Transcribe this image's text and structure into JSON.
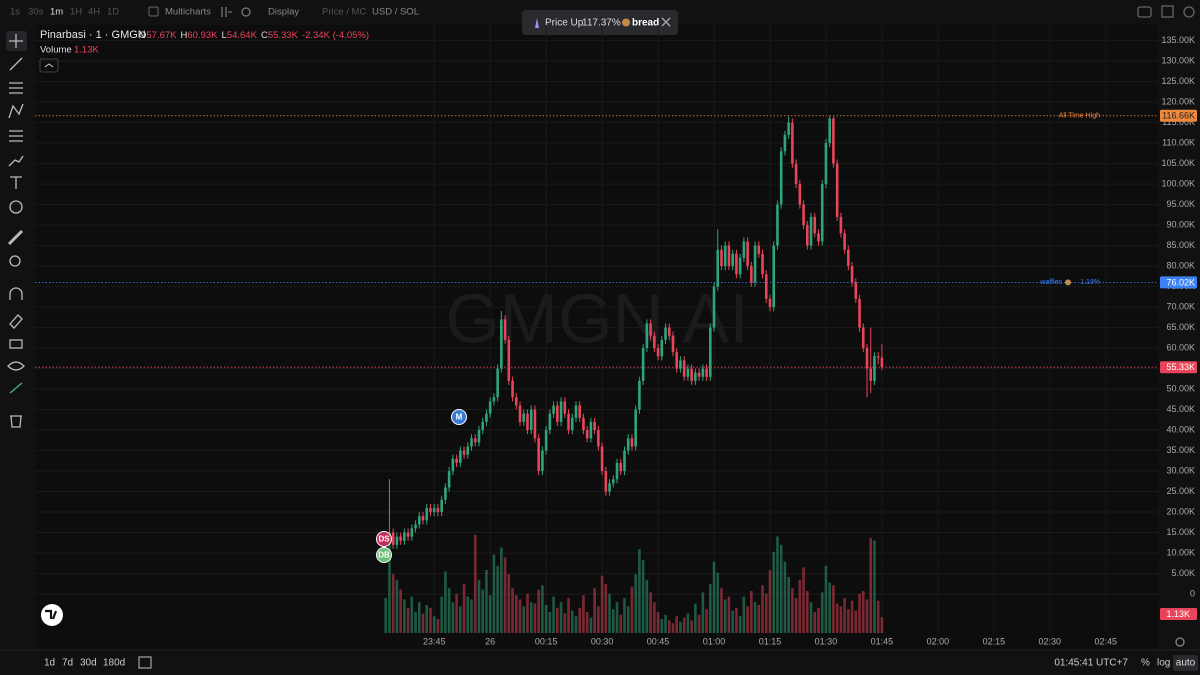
{
  "toolbar": {
    "intervals": [
      "1s",
      "30s",
      "1m",
      "1H",
      "4H",
      "1D"
    ],
    "multicharts": "Multicharts",
    "display": "Display",
    "price_mc": "Price / MC",
    "currency": "USD / SOL"
  },
  "notification": {
    "text": "Price Up",
    "change": "117.37%",
    "token": "bread"
  },
  "header": {
    "symbol": "Pinarbasi · 1 · GMGN",
    "ohlc": [
      {
        "key": "O",
        "value": "57.67K"
      },
      {
        "key": "H",
        "value": "60.93K"
      },
      {
        "key": "L",
        "value": "54.64K"
      },
      {
        "key": "C",
        "value": "55.33K"
      }
    ],
    "change": "-2.34K (-4.05%)",
    "volume_label": "Volume",
    "volume_value": "1.13K"
  },
  "chart_data": {
    "type": "candlestick",
    "watermark": "GMGN.AI",
    "up_color": "#2ea57c",
    "down_color": "#e8455a",
    "grid": true,
    "x": [
      "23:32",
      "23:33",
      "23:34",
      "23:35",
      "23:36",
      "23:37",
      "23:38",
      "23:39",
      "23:40",
      "23:41",
      "23:42",
      "23:43",
      "23:44",
      "23:45",
      "23:46",
      "23:47",
      "23:48",
      "23:49",
      "23:50",
      "23:51",
      "23:52",
      "23:53",
      "23:54",
      "23:55",
      "23:56",
      "23:57",
      "23:58",
      "23:59",
      "00:00",
      "00:01",
      "00:02",
      "00:03",
      "00:04",
      "00:05",
      "00:06",
      "00:07",
      "00:08",
      "00:09",
      "00:10",
      "00:11",
      "00:12",
      "00:13",
      "00:14",
      "00:15",
      "00:16",
      "00:17",
      "00:18",
      "00:19",
      "00:20",
      "00:21",
      "00:22",
      "00:23",
      "00:24",
      "00:25",
      "00:26",
      "00:27",
      "00:28",
      "00:29",
      "00:30",
      "00:31",
      "00:32",
      "00:33",
      "00:34",
      "00:35",
      "00:36",
      "00:37",
      "00:38",
      "00:39",
      "00:40",
      "00:41",
      "00:42",
      "00:43",
      "00:44",
      "00:45",
      "00:46",
      "00:47",
      "00:48",
      "00:49",
      "00:50",
      "00:51",
      "00:52",
      "00:53",
      "00:54",
      "00:55",
      "00:56",
      "00:57",
      "00:58",
      "00:59",
      "01:00",
      "01:01",
      "01:02",
      "01:03",
      "01:04",
      "01:05",
      "01:06",
      "01:07",
      "01:08",
      "01:09",
      "01:10",
      "01:11",
      "01:12",
      "01:13",
      "01:14",
      "01:15",
      "01:16",
      "01:17",
      "01:18",
      "01:19",
      "01:20",
      "01:21",
      "01:22",
      "01:23",
      "01:24",
      "01:25",
      "01:26",
      "01:27",
      "01:28",
      "01:29",
      "01:30",
      "01:31",
      "01:32",
      "01:33",
      "01:34",
      "01:35",
      "01:36",
      "01:37",
      "01:38",
      "01:39",
      "01:40",
      "01:41",
      "01:42",
      "01:43",
      "01:44",
      "01:45"
    ],
    "open": [
      12000,
      13000,
      15000,
      12000,
      14000,
      13000,
      15000,
      14000,
      16000,
      17000,
      19000,
      18000,
      21000,
      20000,
      21000,
      20000,
      23000,
      26000,
      30000,
      33000,
      32000,
      35000,
      34000,
      36000,
      38000,
      37000,
      40000,
      42000,
      44000,
      47000,
      48000,
      55000,
      67000,
      62000,
      52000,
      48000,
      46000,
      42000,
      44000,
      40000,
      45000,
      38000,
      30000,
      35000,
      40000,
      44000,
      46000,
      42000,
      47000,
      44000,
      40000,
      43000,
      46000,
      43000,
      40000,
      38000,
      42000,
      40000,
      36000,
      30000,
      25000,
      27000,
      28000,
      32000,
      30000,
      35000,
      38000,
      36000,
      45000,
      52000,
      60000,
      66000,
      63000,
      60000,
      58000,
      62000,
      65000,
      63000,
      59000,
      55000,
      57000,
      53000,
      55000,
      52000,
      54000,
      53000,
      55000,
      53000,
      65000,
      75000,
      84000,
      80000,
      85000,
      80000,
      83000,
      78000,
      82000,
      86000,
      80000,
      76000,
      85000,
      83000,
      78000,
      72000,
      70000,
      85000,
      95000,
      108000,
      112000,
      115000,
      105000,
      100000,
      95000,
      90000,
      85000,
      92000,
      88000,
      86000,
      100000,
      110000,
      116000,
      105000,
      92000,
      88000,
      84000,
      80000,
      76000,
      72000,
      65000,
      60000,
      55000,
      52000,
      58000,
      57670
    ],
    "high": [
      14000,
      28000,
      16000,
      15000,
      15000,
      16000,
      16000,
      17000,
      18000,
      20000,
      20000,
      22000,
      22000,
      22000,
      22000,
      24000,
      27000,
      31000,
      34000,
      34000,
      36000,
      36000,
      37000,
      39000,
      39000,
      41000,
      43000,
      45000,
      48000,
      49000,
      56000,
      69000,
      68000,
      63000,
      53000,
      49000,
      47000,
      45000,
      45000,
      46000,
      46000,
      39000,
      36000,
      41000,
      45000,
      47000,
      47000,
      48000,
      48000,
      45000,
      44000,
      47000,
      47000,
      44000,
      41000,
      43000,
      43000,
      41000,
      37000,
      31000,
      28000,
      29000,
      33000,
      33000,
      36000,
      39000,
      39000,
      46000,
      53000,
      61000,
      67000,
      67000,
      64000,
      61000,
      63000,
      66000,
      66000,
      64000,
      60000,
      58000,
      58000,
      56000,
      56000,
      55000,
      55000,
      56000,
      56000,
      66000,
      76000,
      89000,
      85000,
      86000,
      86000,
      84000,
      84000,
      83000,
      87000,
      87000,
      81000,
      86000,
      86000,
      84000,
      79000,
      73000,
      86000,
      96000,
      109000,
      113000,
      116500,
      116000,
      106000,
      101000,
      96000,
      91000,
      93000,
      93000,
      89000,
      101000,
      111000,
      116660,
      116500,
      106000,
      93000,
      89000,
      85000,
      81000,
      77000,
      73000,
      66000,
      61000,
      65000,
      59000,
      59000,
      60930
    ],
    "low": [
      11000,
      12000,
      11000,
      11000,
      12000,
      12000,
      13000,
      13000,
      15000,
      16000,
      17000,
      17000,
      19000,
      19000,
      19000,
      19000,
      22000,
      25000,
      29000,
      31000,
      31000,
      33000,
      33000,
      35000,
      36000,
      36000,
      39000,
      41000,
      43000,
      46000,
      47000,
      54000,
      61000,
      51000,
      47000,
      45000,
      41000,
      41000,
      39000,
      39000,
      37000,
      29000,
      29000,
      34000,
      39000,
      43000,
      41000,
      41000,
      43000,
      39000,
      39000,
      42000,
      42000,
      39000,
      37000,
      37000,
      39000,
      35000,
      29000,
      24000,
      24000,
      26000,
      27000,
      29000,
      29000,
      34000,
      35000,
      35000,
      44000,
      51000,
      59000,
      62000,
      59000,
      57000,
      57000,
      61000,
      62000,
      58000,
      54000,
      54000,
      52000,
      52000,
      51000,
      51000,
      52000,
      52000,
      52000,
      52000,
      64000,
      74000,
      79000,
      79000,
      79000,
      79000,
      77000,
      77000,
      81000,
      79000,
      75000,
      75000,
      82000,
      77000,
      71000,
      69000,
      69000,
      84000,
      94000,
      107000,
      111000,
      104000,
      99000,
      94000,
      89000,
      84000,
      84000,
      87000,
      85000,
      85000,
      99000,
      109000,
      104000,
      91000,
      87000,
      83000,
      79000,
      75000,
      71000,
      64000,
      59000,
      48000,
      49000,
      51000,
      56000,
      54640
    ],
    "close": [
      13000,
      15000,
      12000,
      14000,
      13000,
      15000,
      14000,
      16000,
      17000,
      19000,
      18000,
      21000,
      20000,
      21000,
      20000,
      23000,
      26000,
      30000,
      33000,
      32000,
      35000,
      34000,
      36000,
      38000,
      37000,
      40000,
      42000,
      44000,
      47000,
      48000,
      55000,
      67000,
      62000,
      52000,
      48000,
      46000,
      42000,
      44000,
      40000,
      45000,
      38000,
      30000,
      35000,
      40000,
      44000,
      46000,
      42000,
      47000,
      44000,
      40000,
      43000,
      46000,
      43000,
      40000,
      38000,
      42000,
      40000,
      36000,
      30000,
      25000,
      27000,
      28000,
      32000,
      30000,
      35000,
      38000,
      36000,
      45000,
      52000,
      60000,
      66000,
      63000,
      60000,
      58000,
      62000,
      65000,
      63000,
      59000,
      55000,
      57000,
      53000,
      55000,
      52000,
      54000,
      53000,
      55000,
      53000,
      65000,
      75000,
      84000,
      80000,
      85000,
      80000,
      83000,
      78000,
      82000,
      86000,
      80000,
      76000,
      85000,
      83000,
      78000,
      72000,
      70000,
      85000,
      95000,
      108000,
      112000,
      115000,
      105000,
      100000,
      95000,
      90000,
      85000,
      92000,
      88000,
      86000,
      100000,
      110000,
      116000,
      105000,
      92000,
      88000,
      84000,
      80000,
      76000,
      72000,
      65000,
      60000,
      55000,
      52000,
      58000,
      57670,
      55330
    ],
    "volume": [
      2500,
      6800,
      4200,
      3800,
      3100,
      2400,
      1800,
      2600,
      1500,
      2200,
      1400,
      2000,
      1800,
      1200,
      1000,
      2600,
      4400,
      3200,
      2200,
      2800,
      1900,
      3500,
      2600,
      2400,
      7000,
      3800,
      3100,
      4500,
      2700,
      5600,
      4800,
      6100,
      5400,
      4200,
      3200,
      2700,
      2400,
      1900,
      2800,
      2200,
      2100,
      3100,
      3400,
      2000,
      1500,
      2600,
      1800,
      2200,
      1400,
      2500,
      1600,
      1200,
      1800,
      2700,
      1500,
      1100,
      3200,
      1900,
      4100,
      3500,
      2800,
      1700,
      2200,
      1300,
      2500,
      1900,
      3300,
      4200,
      6000,
      5200,
      3800,
      2900,
      2200,
      1500,
      1000,
      1300,
      900,
      700,
      1200,
      800,
      1100,
      1400,
      900,
      2100,
      1300,
      2900,
      1700,
      3500,
      5100,
      4300,
      3200,
      2400,
      2600,
      1600,
      1800,
      1200,
      2600,
      1900,
      3000,
      2200,
      2000,
      3400,
      2800,
      4500,
      5800,
      6900,
      6300,
      5100,
      4000,
      3200,
      2500,
      3800,
      4700,
      3000,
      2200,
      1500,
      1800,
      2900,
      4800,
      3600,
      3400,
      2100,
      1900,
      2500,
      1700,
      2300,
      1600,
      2800,
      3000,
      2400,
      6800,
      6600,
      2300,
      1130
    ],
    "xlim": [
      "21:58",
      "02:59"
    ],
    "xticks": [
      "23:45",
      {
        "value": "00:00",
        "label": "26"
      },
      "00:15",
      "00:30",
      "00:45",
      "01:00",
      "01:15",
      "01:30",
      "01:45",
      "02:00",
      "02:15",
      "02:30",
      "02:45"
    ],
    "ylim": [
      -9500,
      138800
    ],
    "yticks": [
      0,
      {
        "value": 5000,
        "label": "5.00K"
      },
      {
        "value": 10000,
        "label": "10.00K"
      },
      {
        "value": 15000,
        "label": "15.00K"
      },
      {
        "value": 20000,
        "label": "20.00K"
      },
      {
        "value": 25000,
        "label": "25.00K"
      },
      {
        "value": 30000,
        "label": "30.00K"
      },
      {
        "value": 35000,
        "label": "35.00K"
      },
      {
        "value": 40000,
        "label": "40.00K"
      },
      {
        "value": 45000,
        "label": "45.00K"
      },
      {
        "value": 50000,
        "label": "50.00K"
      },
      {
        "value": 55000,
        "label": "55.00K"
      },
      {
        "value": 60000,
        "label": "60.00K"
      },
      {
        "value": 65000,
        "label": "65.00K"
      },
      {
        "value": 70000,
        "label": "70.00K"
      },
      {
        "value": 75000,
        "label": "75.00K"
      },
      {
        "value": 80000,
        "label": "80.00K"
      },
      {
        "value": 85000,
        "label": "85.00K"
      },
      {
        "value": 90000,
        "label": "90.00K"
      },
      {
        "value": 95000,
        "label": "95.00K"
      },
      {
        "value": 100000,
        "label": "100.00K"
      },
      {
        "value": 105000,
        "label": "105.00K"
      },
      {
        "value": 110000,
        "label": "110.00K"
      },
      {
        "value": 115000,
        "label": "115.00K"
      },
      {
        "value": 120000,
        "label": "120.00K"
      },
      {
        "value": 125000,
        "label": "125.00K"
      },
      {
        "value": 130000,
        "label": "130.00K"
      },
      {
        "value": 135000,
        "label": "135.00K"
      }
    ],
    "lines": [
      {
        "name": "All Time High",
        "value": 116660,
        "label": "116.66K",
        "color": "#f0883e"
      },
      {
        "name": "waffles",
        "change": "1.19%",
        "value": 76020,
        "label": "76.02K",
        "color": "#3b82f6"
      },
      {
        "value": 55330,
        "label": "55.33K",
        "color": "#e8455a"
      }
    ],
    "markers": [
      "DS",
      "DB",
      "M"
    ]
  },
  "bottom_bar": {
    "ranges": [
      "1d",
      "7d",
      "30d",
      "180d"
    ],
    "clock": "01:45:41 UTC+7",
    "percent": "%",
    "log": "log",
    "auto": "auto"
  }
}
